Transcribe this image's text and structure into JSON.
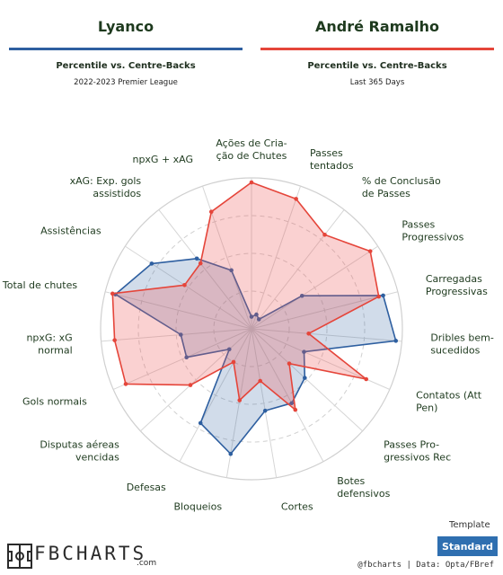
{
  "players": [
    {
      "name": "Lyanco",
      "subtitle": "Percentile vs. Centre-Backs",
      "period": "2022-2023 Premier League",
      "color": "#2e5fa0",
      "fill": "rgba(46,95,160,0.22)"
    },
    {
      "name": "André Ramalho",
      "subtitle": "Percentile vs. Centre-Backs",
      "period": "Last 365 Days",
      "color": "#e5453a",
      "fill": "rgba(238,90,90,0.28)"
    }
  ],
  "template": {
    "label": "Template",
    "button": "Standard"
  },
  "brand": {
    "name": "FBCHARTS",
    "suffix": ".com"
  },
  "credit": "@fbcharts | Data: Opta/FBref",
  "chart_data": {
    "type": "radar",
    "axis_range": [
      0,
      100
    ],
    "grid": true,
    "categories": [
      "Ações de Criação de Chutes",
      "Passes tentados",
      "% de Conclusão de Passes",
      "Passes Progressivos",
      "Carregadas Progressivas",
      "Dribles bem-sucedidos",
      "Contatos (Att Pen)",
      "Passes Progressivos Rec",
      "Botes defensivos",
      "Cortes",
      "Bloqueios",
      "Defesas",
      "Disputas aéreas vencidas",
      "Gols normais",
      "npxG: xG normal",
      "Total de chutes",
      "Assistências",
      "xAG: Exp. gols assistidos",
      "npxG + xAG"
    ],
    "series": [
      {
        "name": "Lyanco",
        "values": [
          8,
          10,
          8,
          40,
          90,
          96,
          38,
          48,
          56,
          55,
          84,
          71,
          20,
          47,
          47,
          93,
          79,
          59,
          41
        ]
      },
      {
        "name": "André Ramalho",
        "values": [
          97,
          91,
          79,
          94,
          87,
          38,
          83,
          34,
          61,
          35,
          48,
          25,
          55,
          91,
          91,
          95,
          53,
          55,
          82
        ]
      }
    ]
  },
  "label_lines": [
    [
      "Ações de Cria-",
      "ção de Chutes"
    ],
    [
      "Passes",
      "tentados"
    ],
    [
      "% de Conclusão",
      "de Passes"
    ],
    [
      "Passes",
      "Progressivos"
    ],
    [
      "Carregadas",
      "Progressivas"
    ],
    [
      "Dribles bem-",
      "sucedidos"
    ],
    [
      "Contatos (Att",
      "Pen)"
    ],
    [
      "Passes Pro-",
      "gressivos Rec"
    ],
    [
      "Botes",
      "defensivos"
    ],
    [
      "Cortes"
    ],
    [
      "Bloqueios"
    ],
    [
      "Defesas"
    ],
    [
      "Disputas aéreas",
      "vencidas"
    ],
    [
      "Gols normais"
    ],
    [
      "npxG: xG",
      "normal"
    ],
    [
      "Total de chutes"
    ],
    [
      "Assistências"
    ],
    [
      "xAG: Exp. gols",
      "assistidos"
    ],
    [
      "npxG + xAG"
    ]
  ]
}
